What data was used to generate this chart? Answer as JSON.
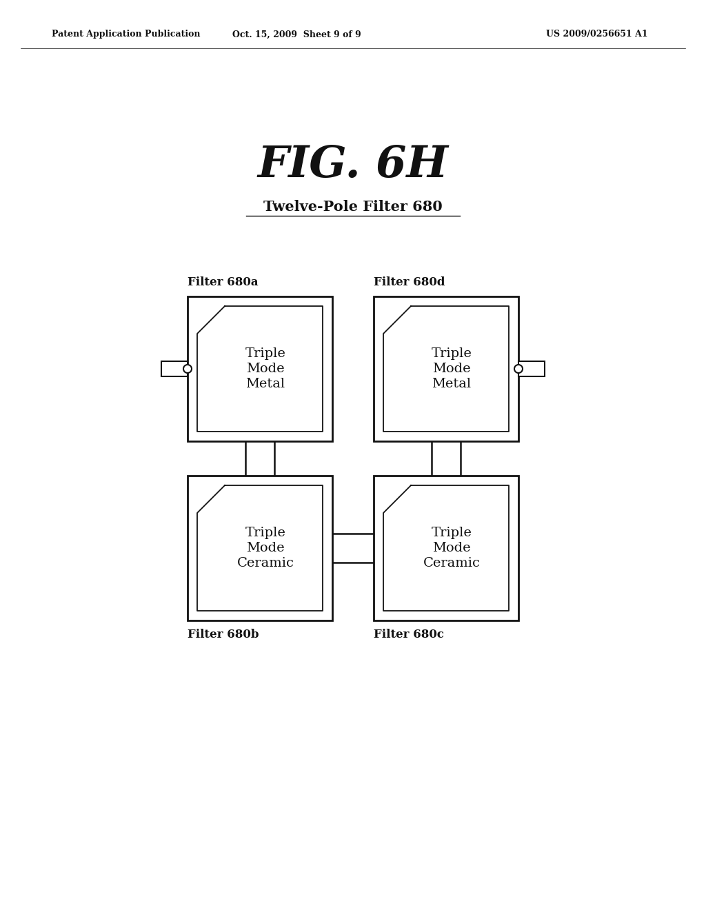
{
  "bg_color": "#ffffff",
  "header_left": "Patent Application Publication",
  "header_mid": "Oct. 15, 2009  Sheet 9 of 9",
  "header_right": "US 2009/0256651 A1",
  "fig_title": "FIG. 6H",
  "fig_subtitle": "Twelve-Pole Filter 680",
  "filter_labels": [
    "Filter 680a",
    "Filter 680d",
    "Filter 680b",
    "Filter 680c"
  ],
  "filter_texts_top": [
    [
      "Triple",
      "Mode",
      "Metal"
    ],
    [
      "Triple",
      "Mode",
      "Metal"
    ]
  ],
  "filter_texts_bot": [
    [
      "Triple",
      "Mode",
      "Ceramic"
    ],
    [
      "Triple",
      "Mode",
      "Ceramic"
    ]
  ],
  "text_color": "#000000",
  "box_color": "#111111"
}
